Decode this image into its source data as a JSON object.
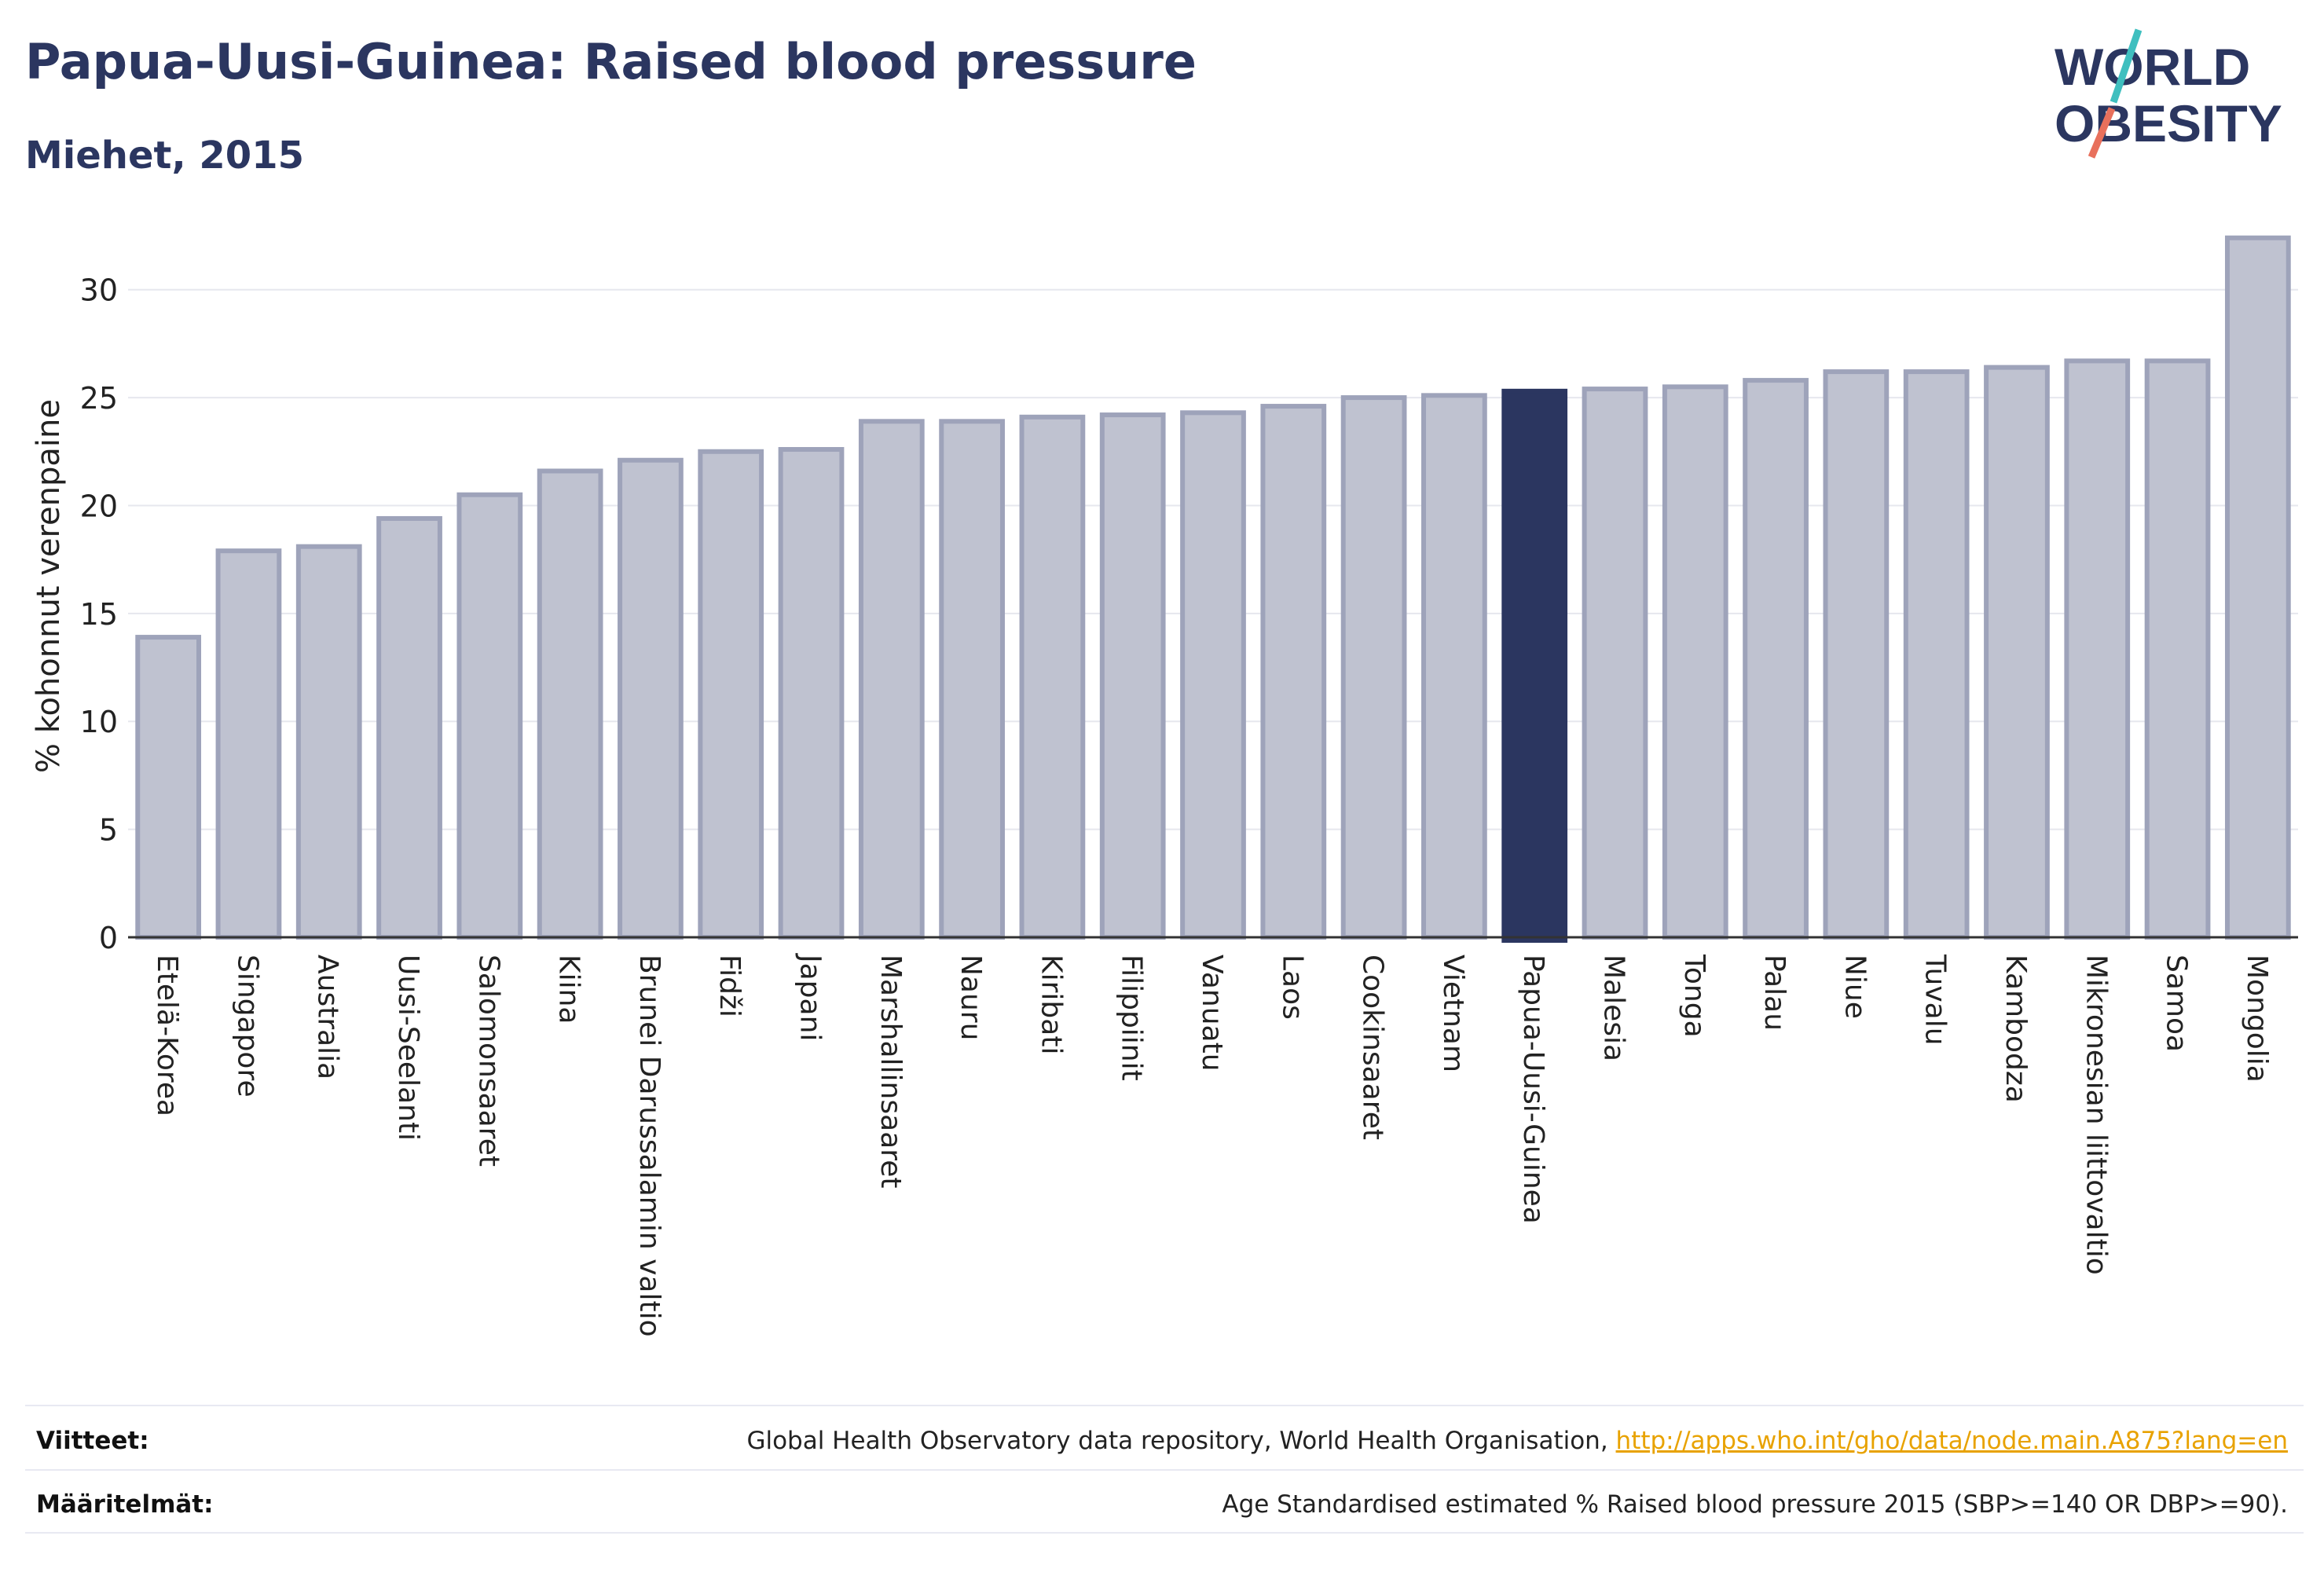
{
  "header": {
    "title": "Papua-Uusi-Guinea: Raised blood pressure",
    "subtitle": "Miehet, 2015"
  },
  "logo": {
    "line1": "WORLD",
    "line2": "OBESITY"
  },
  "colors": {
    "highlight": "#2b3660",
    "bar": "#bfc2d0",
    "bar_stroke": "#9ea3ba",
    "grid": "#e6e7ee",
    "text": "#2b3660"
  },
  "chart_data": {
    "type": "bar",
    "ylabel": "% kohonnut verenpaine",
    "ylim": [
      0,
      32.5
    ],
    "yticks": [
      0,
      5,
      10,
      15,
      20,
      25,
      30
    ],
    "grid": true,
    "highlight": "Papua-Uusi-Guinea",
    "categories": [
      "Etelä-Korea",
      "Singapore",
      "Australia",
      "Uusi-Seelanti",
      "Salomonsaaret",
      "Kiina",
      "Brunei Darussalamin valtio",
      "Fidži",
      "Japani",
      "Marshallinsaaret",
      "Nauru",
      "Kiribati",
      "Filippiinit",
      "Vanuatu",
      "Laos",
      "Cookinsaaret",
      "Vietnam",
      "Papua-Uusi-Guinea",
      "Malesia",
      "Tonga",
      "Palau",
      "Niue",
      "Tuvalu",
      "Kambodza",
      "Mikronesian liittovaltio",
      "Samoa",
      "Mongolia"
    ],
    "values": [
      13.9,
      17.9,
      18.1,
      19.4,
      20.5,
      21.6,
      22.1,
      22.5,
      22.6,
      23.9,
      23.9,
      24.1,
      24.2,
      24.3,
      24.6,
      25.0,
      25.1,
      25.3,
      25.4,
      25.5,
      25.8,
      26.2,
      26.2,
      26.4,
      26.7,
      26.7,
      32.4
    ]
  },
  "footer": {
    "sources_label": "Viitteet:",
    "sources_text": "Global Health Observatory data repository, World Health Organisation,",
    "sources_link": "http://apps.who.int/gho/data/node.main.A875?lang=en",
    "definitions_label": "Määritelmät:",
    "definitions_text": "Age Standardised estimated % Raised blood pressure 2015 (SBP>=140 OR DBP>=90)."
  }
}
